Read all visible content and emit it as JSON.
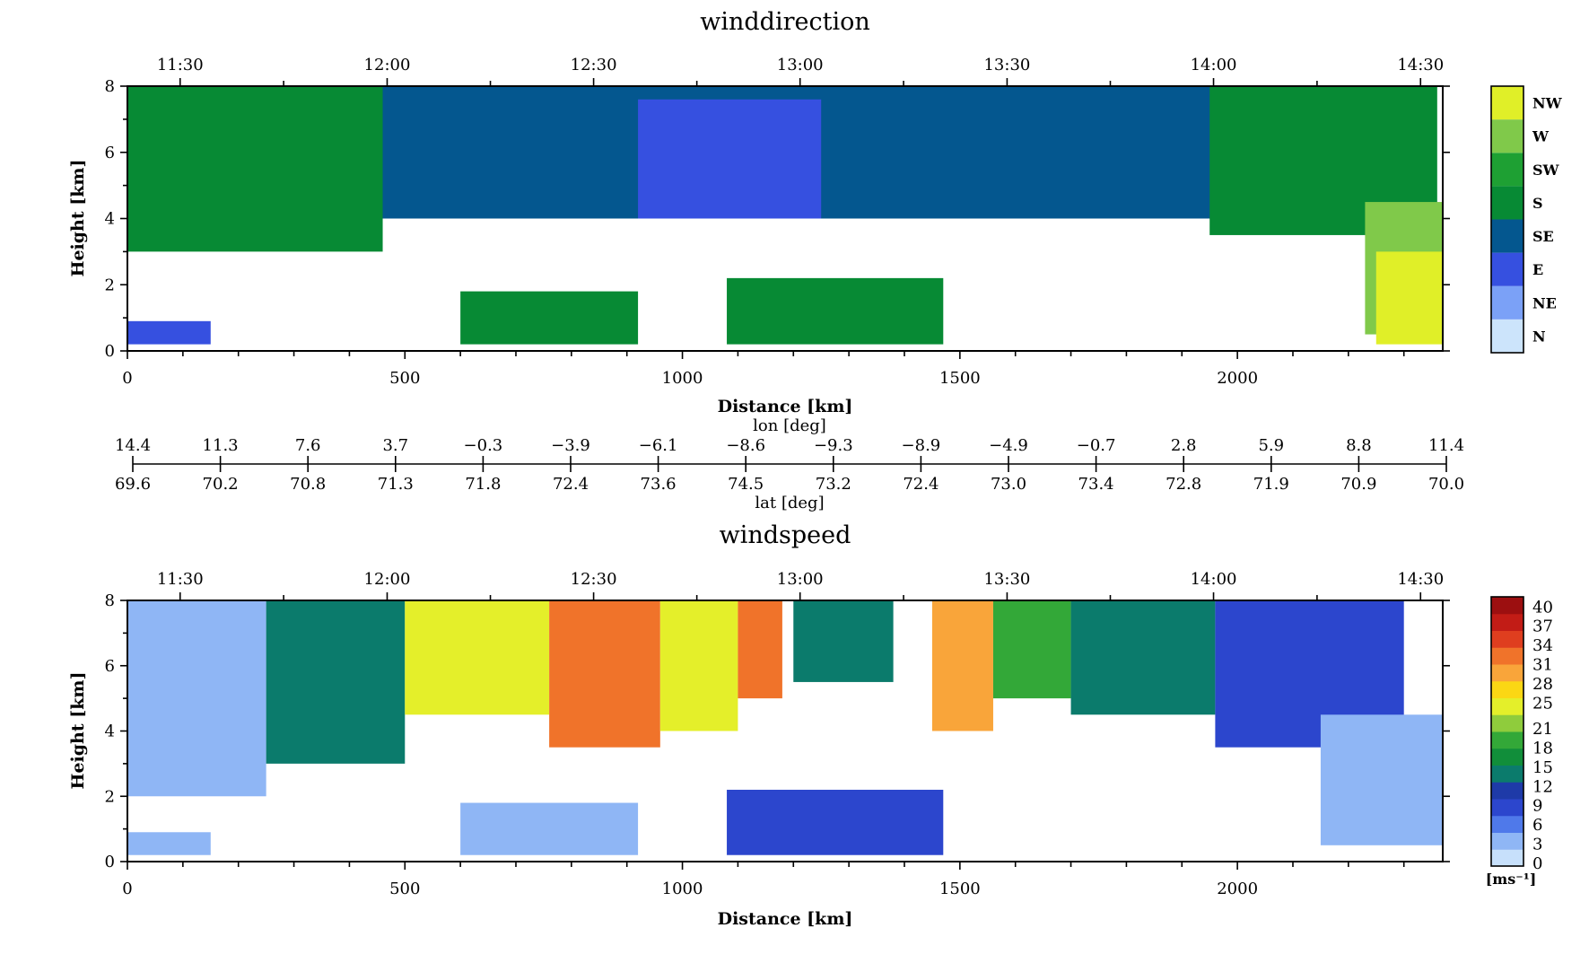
{
  "chart_data": [
    {
      "type": "heatmap",
      "title": "winddirection",
      "xlabel": "Distance [km]",
      "ylabel": "Height [km]",
      "xlim": [
        0,
        2370
      ],
      "ylim": [
        0,
        8
      ],
      "x_ticks": [
        0,
        500,
        1000,
        1500,
        2000
      ],
      "y_ticks": [
        0,
        2,
        4,
        6,
        8
      ],
      "time_ticks": [
        "11:30",
        "12:00",
        "12:30",
        "13:00",
        "13:30",
        "14:00",
        "14:30"
      ],
      "time_tick_positions_km": [
        95,
        468,
        840,
        1212,
        1585,
        1957,
        2330
      ],
      "colorbar": {
        "labels": [
          "N",
          "NE",
          "E",
          "SE",
          "S",
          "SW",
          "W",
          "NW"
        ],
        "colors": [
          "#cce4fb",
          "#7ba1f7",
          "#3650e0",
          "#04578f",
          "#078a34",
          "#1ea033",
          "#80c94a",
          "#e0ef28"
        ]
      },
      "regions": [
        {
          "label": "SE",
          "x": [
            0,
            2330
          ],
          "y": [
            4.0,
            8.0
          ]
        },
        {
          "label": "E",
          "x": [
            920,
            1250
          ],
          "y": [
            4.0,
            7.6
          ]
        },
        {
          "label": "S",
          "x": [
            0,
            460
          ],
          "y": [
            3.0,
            8.0
          ]
        },
        {
          "label": "S",
          "x": [
            1950,
            2360
          ],
          "y": [
            3.5,
            8.0
          ]
        },
        {
          "label": "S",
          "x": [
            600,
            920
          ],
          "y": [
            0.2,
            1.8
          ]
        },
        {
          "label": "S",
          "x": [
            1080,
            1470
          ],
          "y": [
            0.2,
            2.2
          ]
        },
        {
          "label": "E",
          "x": [
            0,
            150
          ],
          "y": [
            0.2,
            0.9
          ]
        },
        {
          "label": "W",
          "x": [
            2230,
            2370
          ],
          "y": [
            0.5,
            4.5
          ]
        },
        {
          "label": "NW",
          "x": [
            2250,
            2370
          ],
          "y": [
            0.2,
            3.0
          ]
        }
      ]
    },
    {
      "type": "table",
      "title": "",
      "rows": [
        {
          "label": "lon [deg]",
          "values": [
            "14.4",
            "11.3",
            "7.6",
            "3.7",
            "−0.3",
            "−3.9",
            "−6.1",
            "−8.6",
            "−9.3",
            "−8.9",
            "−4.9",
            "−0.7",
            "2.8",
            "5.9",
            "8.8",
            "11.4"
          ]
        },
        {
          "label": "lat [deg]",
          "values": [
            "69.6",
            "70.2",
            "70.8",
            "71.3",
            "71.8",
            "72.4",
            "73.6",
            "74.5",
            "73.2",
            "72.4",
            "73.0",
            "73.4",
            "72.8",
            "71.9",
            "70.9",
            "70.0"
          ]
        }
      ]
    },
    {
      "type": "heatmap",
      "title": "windspeed",
      "xlabel": "Distance [km]",
      "ylabel": "Height [km]",
      "xlim": [
        0,
        2370
      ],
      "ylim": [
        0,
        8
      ],
      "x_ticks": [
        0,
        500,
        1000,
        1500,
        2000
      ],
      "y_ticks": [
        0,
        2,
        4,
        6,
        8
      ],
      "time_ticks": [
        "11:30",
        "12:00",
        "12:30",
        "13:00",
        "13:30",
        "14:00",
        "14:30"
      ],
      "time_tick_positions_km": [
        95,
        468,
        840,
        1212,
        1585,
        1957,
        2330
      ],
      "colorbar": {
        "unit": "[ms⁻¹]",
        "labels": [
          "0",
          "3",
          "6",
          "9",
          "12",
          "15",
          "18",
          "21",
          "25",
          "28",
          "31",
          "34",
          "37",
          "40"
        ],
        "colors": [
          "#c7e0fb",
          "#8fb6f5",
          "#4f79ea",
          "#2c46cd",
          "#1e3aa8",
          "#0b7b6c",
          "#118e3a",
          "#33a838",
          "#8fcc3c",
          "#e4ef2a",
          "#fbd714",
          "#f9a53a",
          "#f0732a",
          "#df3e1f",
          "#c21c16",
          "#9c0f10"
        ]
      },
      "regions": [
        {
          "value": 5,
          "x": [
            0,
            250
          ],
          "y": [
            2.0,
            8.0
          ]
        },
        {
          "value": 14,
          "x": [
            250,
            500
          ],
          "y": [
            3.0,
            8.0
          ]
        },
        {
          "value": 24,
          "x": [
            500,
            760
          ],
          "y": [
            4.5,
            8.0
          ]
        },
        {
          "value": 32,
          "x": [
            760,
            960
          ],
          "y": [
            3.5,
            8.0
          ]
        },
        {
          "value": 24,
          "x": [
            960,
            1100
          ],
          "y": [
            4.0,
            8.0
          ]
        },
        {
          "value": 32,
          "x": [
            1100,
            1180
          ],
          "y": [
            5.0,
            8.0
          ]
        },
        {
          "value": 15,
          "x": [
            1200,
            1380
          ],
          "y": [
            5.5,
            8.0
          ]
        },
        {
          "value": 30,
          "x": [
            1450,
            1560
          ],
          "y": [
            4.0,
            8.0
          ]
        },
        {
          "value": 20,
          "x": [
            1560,
            1700
          ],
          "y": [
            5.0,
            8.0
          ]
        },
        {
          "value": 14,
          "x": [
            1700,
            1960
          ],
          "y": [
            4.5,
            8.0
          ]
        },
        {
          "value": 8,
          "x": [
            1960,
            2300
          ],
          "y": [
            3.5,
            8.0
          ]
        },
        {
          "value": 4,
          "x": [
            2150,
            2370
          ],
          "y": [
            0.5,
            4.5
          ]
        },
        {
          "value": 5,
          "x": [
            600,
            920
          ],
          "y": [
            0.2,
            1.8
          ]
        },
        {
          "value": 8,
          "x": [
            1080,
            1470
          ],
          "y": [
            0.2,
            2.2
          ]
        },
        {
          "value": 4,
          "x": [
            0,
            150
          ],
          "y": [
            0.2,
            0.9
          ]
        }
      ]
    }
  ]
}
